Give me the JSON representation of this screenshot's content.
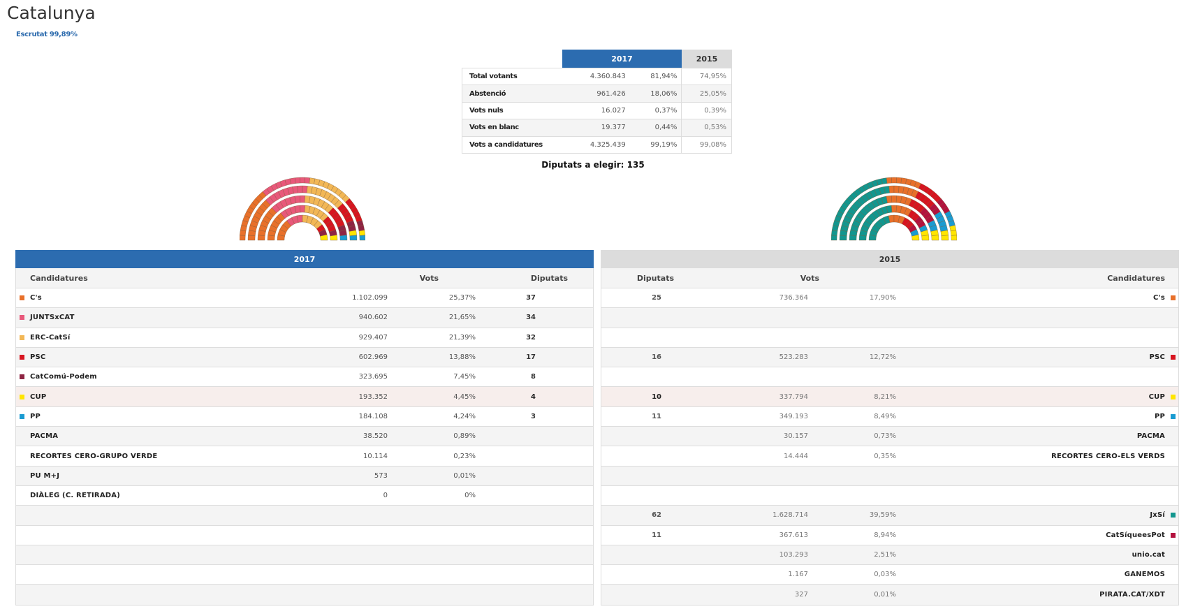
{
  "header": {
    "title": "Catalunya",
    "escrutat": "Escrutat 99,89%"
  },
  "summary": {
    "year_current": "2017",
    "year_previous": "2015",
    "rows": [
      {
        "label": "Total votants",
        "value": "4.360.843",
        "pct": "81,94%",
        "pct_prev": "74,95%"
      },
      {
        "label": "Abstenció",
        "value": "961.426",
        "pct": "18,06%",
        "pct_prev": "25,05%"
      },
      {
        "label": "Vots nuls",
        "value": "16.027",
        "pct": "0,37%",
        "pct_prev": "0,39%"
      },
      {
        "label": "Vots en blanc",
        "value": "19.377",
        "pct": "0,44%",
        "pct_prev": "0,53%"
      },
      {
        "label": "Vots a candidatures",
        "value": "4.325.439",
        "pct": "99,19%",
        "pct_prev": "99,08%"
      }
    ],
    "diputats_a_elegir": "Diputats a elegir: 135"
  },
  "colors": {
    "brand_blue": "#2c6cb0",
    "header_grey": "#dcdcdc",
    "cs": "#e8702a",
    "juntsxcat": "#e8587a",
    "erc": "#f2b756",
    "psc": "#d7141f",
    "catcomu": "#8e2443",
    "cup": "#ffe500",
    "pp": "#1a9bd1",
    "jxsi": "#13968e",
    "catsiqueespot": "#b3123e"
  },
  "hemicycle_2017": [
    {
      "party": "C's",
      "seats": 37,
      "color": "#e8702a"
    },
    {
      "party": "JUNTSxCAT",
      "seats": 34,
      "color": "#e8587a"
    },
    {
      "party": "ERC-CatSí",
      "seats": 32,
      "color": "#f2b756"
    },
    {
      "party": "PSC",
      "seats": 17,
      "color": "#d7141f"
    },
    {
      "party": "CatComú-Podem",
      "seats": 8,
      "color": "#8e2443"
    },
    {
      "party": "CUP",
      "seats": 4,
      "color": "#ffe500"
    },
    {
      "party": "PP",
      "seats": 3,
      "color": "#1a9bd1"
    }
  ],
  "hemicycle_2015": [
    {
      "party": "JxSí",
      "seats": 62,
      "color": "#13968e"
    },
    {
      "party": "C's",
      "seats": 25,
      "color": "#e8702a"
    },
    {
      "party": "PSC",
      "seats": 16,
      "color": "#d7141f"
    },
    {
      "party": "CatSíqueesPot",
      "seats": 11,
      "color": "#b3123e"
    },
    {
      "party": "PP",
      "seats": 11,
      "color": "#1a9bd1"
    },
    {
      "party": "CUP",
      "seats": 10,
      "color": "#ffe500"
    }
  ],
  "results_2017": {
    "title": "2017",
    "headers": {
      "candidatures": "Candidatures",
      "vots": "Vots",
      "diputats": "Diputats"
    },
    "rows": [
      {
        "name": "C's",
        "color": "#e8702a",
        "vots": "1.102.099",
        "pct": "25,37%",
        "diputats": "37"
      },
      {
        "name": "JUNTSxCAT",
        "color": "#e8587a",
        "vots": "940.602",
        "pct": "21,65%",
        "diputats": "34"
      },
      {
        "name": "ERC-CatSí",
        "color": "#f2b756",
        "vots": "929.407",
        "pct": "21,39%",
        "diputats": "32"
      },
      {
        "name": "PSC",
        "color": "#d7141f",
        "vots": "602.969",
        "pct": "13,88%",
        "diputats": "17"
      },
      {
        "name": "CatComú-Podem",
        "color": "#8e2443",
        "vots": "323.695",
        "pct": "7,45%",
        "diputats": "8"
      },
      {
        "name": "CUP",
        "color": "#ffe500",
        "vots": "193.352",
        "pct": "4,45%",
        "diputats": "4"
      },
      {
        "name": "PP",
        "color": "#1a9bd1",
        "vots": "184.108",
        "pct": "4,24%",
        "diputats": "3"
      },
      {
        "name": "PACMA",
        "color": "",
        "vots": "38.520",
        "pct": "0,89%",
        "diputats": ""
      },
      {
        "name": "RECORTES CERO-GRUPO VERDE",
        "color": "",
        "vots": "10.114",
        "pct": "0,23%",
        "diputats": ""
      },
      {
        "name": "PU M+J",
        "color": "",
        "vots": "573",
        "pct": "0,01%",
        "diputats": ""
      },
      {
        "name": "DIÀLEG (C. RETIRADA)",
        "color": "",
        "vots": "0",
        "pct": "0%",
        "diputats": ""
      },
      {
        "name": "",
        "color": "",
        "vots": "",
        "pct": "",
        "diputats": ""
      },
      {
        "name": "",
        "color": "",
        "vots": "",
        "pct": "",
        "diputats": ""
      },
      {
        "name": "",
        "color": "",
        "vots": "",
        "pct": "",
        "diputats": ""
      },
      {
        "name": "",
        "color": "",
        "vots": "",
        "pct": "",
        "diputats": ""
      },
      {
        "name": "",
        "color": "",
        "vots": "",
        "pct": "",
        "diputats": ""
      }
    ]
  },
  "results_2015": {
    "title": "2015",
    "headers": {
      "diputats": "Diputats",
      "vots": "Vots",
      "candidatures": "Candidatures"
    },
    "rows": [
      {
        "name": "C's",
        "color": "#e8702a",
        "vots": "736.364",
        "pct": "17,90%",
        "diputats": "25"
      },
      {
        "name": "",
        "color": "",
        "vots": "",
        "pct": "",
        "diputats": ""
      },
      {
        "name": "",
        "color": "",
        "vots": "",
        "pct": "",
        "diputats": ""
      },
      {
        "name": "PSC",
        "color": "#d7141f",
        "vots": "523.283",
        "pct": "12,72%",
        "diputats": "16"
      },
      {
        "name": "",
        "color": "",
        "vots": "",
        "pct": "",
        "diputats": ""
      },
      {
        "name": "CUP",
        "color": "#ffe500",
        "vots": "337.794",
        "pct": "8,21%",
        "diputats": "10"
      },
      {
        "name": "PP",
        "color": "#1a9bd1",
        "vots": "349.193",
        "pct": "8,49%",
        "diputats": "11"
      },
      {
        "name": "PACMA",
        "color": "",
        "vots": "30.157",
        "pct": "0,73%",
        "diputats": ""
      },
      {
        "name": "RECORTES CERO-ELS VERDS",
        "color": "",
        "vots": "14.444",
        "pct": "0,35%",
        "diputats": ""
      },
      {
        "name": "",
        "color": "",
        "vots": "",
        "pct": "",
        "diputats": ""
      },
      {
        "name": "",
        "color": "",
        "vots": "",
        "pct": "",
        "diputats": ""
      },
      {
        "name": "JxSí",
        "color": "#13968e",
        "vots": "1.628.714",
        "pct": "39,59%",
        "diputats": "62"
      },
      {
        "name": "CatSíqueesPot",
        "color": "#b3123e",
        "vots": "367.613",
        "pct": "8,94%",
        "diputats": "11"
      },
      {
        "name": "unio.cat",
        "color": "",
        "vots": "103.293",
        "pct": "2,51%",
        "diputats": ""
      },
      {
        "name": "GANEMOS",
        "color": "",
        "vots": "1.167",
        "pct": "0,03%",
        "diputats": ""
      },
      {
        "name": "PIRATA.CAT/XDT",
        "color": "",
        "vots": "327",
        "pct": "0,01%",
        "diputats": ""
      }
    ]
  }
}
